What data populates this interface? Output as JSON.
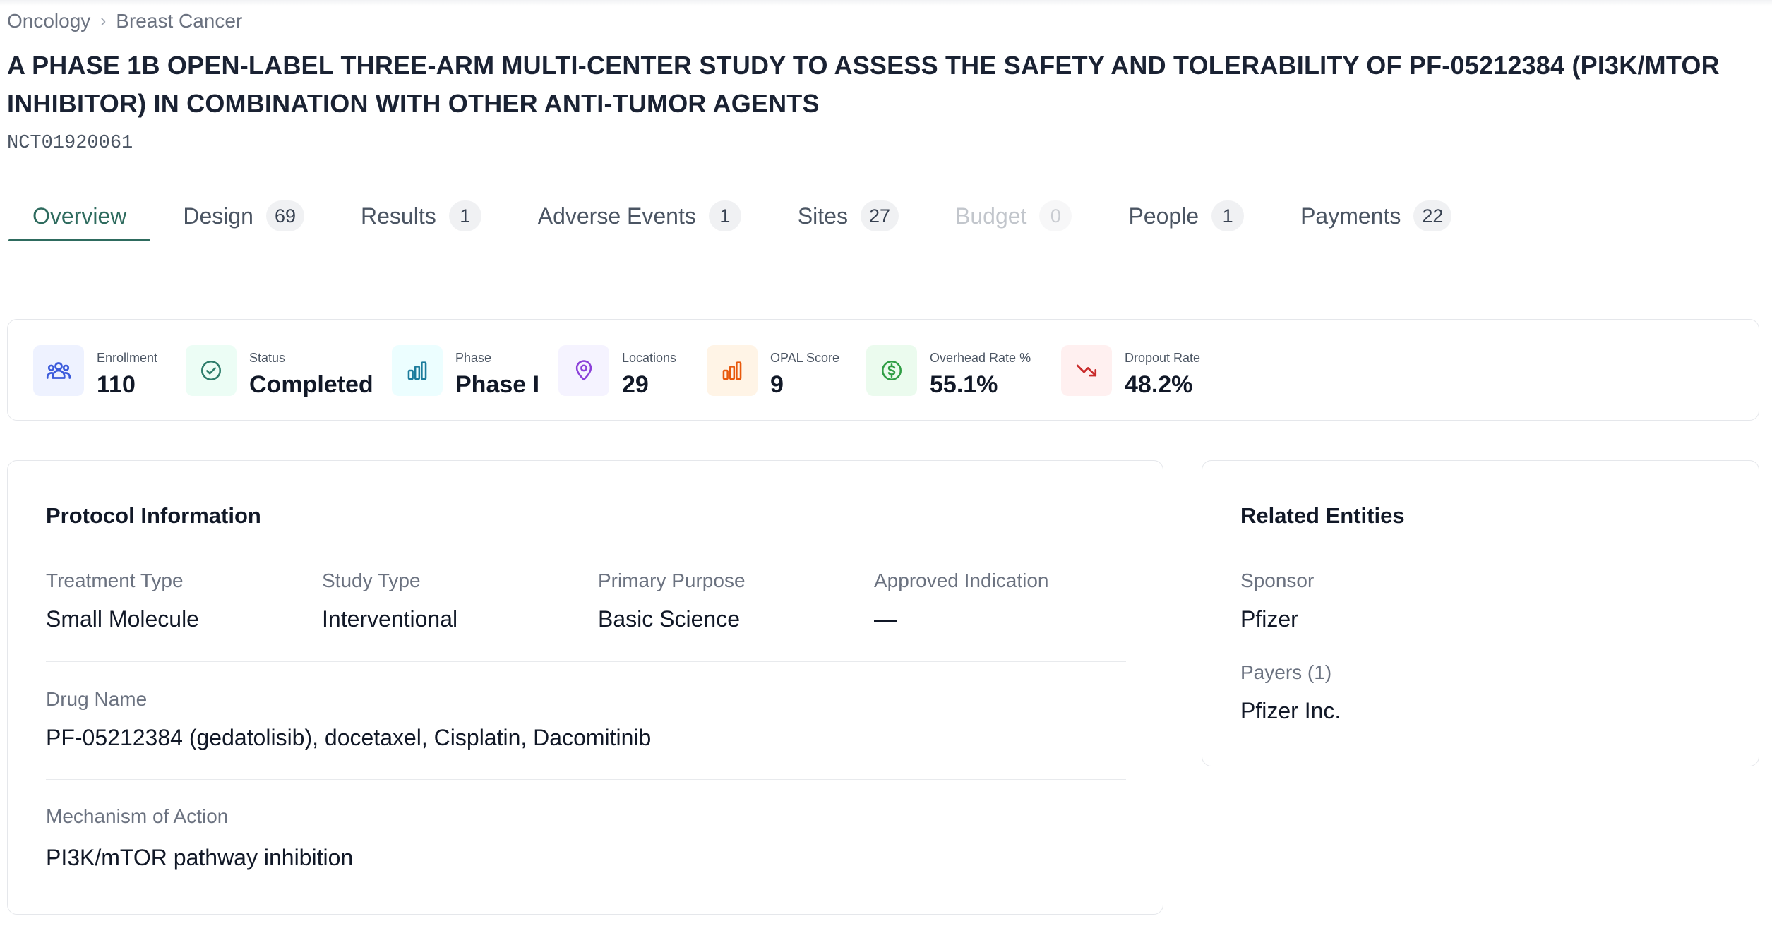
{
  "breadcrumb": {
    "items": [
      "Oncology",
      "Breast Cancer"
    ]
  },
  "study": {
    "title": "A PHASE 1B OPEN-LABEL THREE-ARM MULTI-CENTER STUDY TO ASSESS THE SAFETY AND TOLERABILITY OF PF-05212384 (PI3K/MTOR INHIBITOR) IN COMBINATION WITH OTHER ANTI-TUMOR AGENTS",
    "nct_id": "NCT01920061"
  },
  "tabs": [
    {
      "label": "Overview",
      "count": null,
      "active": true
    },
    {
      "label": "Design",
      "count": "69"
    },
    {
      "label": "Results",
      "count": "1"
    },
    {
      "label": "Adverse Events",
      "count": "1"
    },
    {
      "label": "Sites",
      "count": "27"
    },
    {
      "label": "Budget",
      "count": "0",
      "disabled": true
    },
    {
      "label": "People",
      "count": "1"
    },
    {
      "label": "Payments",
      "count": "22"
    }
  ],
  "stats": [
    {
      "label": "Enrollment",
      "value": "110",
      "icon": "users-icon",
      "color": "#3b5bdb",
      "bg": "#eef2ff"
    },
    {
      "label": "Status",
      "value": "Completed",
      "icon": "check-circle-icon",
      "color": "#2e7d6b",
      "bg": "#ecfdf5"
    },
    {
      "label": "Phase",
      "value": "Phase I",
      "icon": "bar-chart-icon",
      "color": "#1c7c9c",
      "bg": "#ecfeff"
    },
    {
      "label": "Locations",
      "value": "29",
      "icon": "map-pin-icon",
      "color": "#8b3fd9",
      "bg": "#f5f3ff"
    },
    {
      "label": "OPAL Score",
      "value": "9",
      "icon": "bar-chart-icon",
      "color": "#e8590c",
      "bg": "#fff4e6"
    },
    {
      "label": "Overhead Rate %",
      "value": "55.1%",
      "icon": "dollar-circle-icon",
      "color": "#2f9e44",
      "bg": "#ebfbee"
    },
    {
      "label": "Dropout Rate",
      "value": "48.2%",
      "icon": "trending-down-icon",
      "color": "#c92a2a",
      "bg": "#fff0f0"
    }
  ],
  "protocol": {
    "title": "Protocol Information",
    "treatment_type": {
      "label": "Treatment Type",
      "value": "Small Molecule"
    },
    "study_type": {
      "label": "Study Type",
      "value": "Interventional"
    },
    "primary_purpose": {
      "label": "Primary Purpose",
      "value": "Basic Science"
    },
    "approved_indication": {
      "label": "Approved Indication",
      "value": "—"
    },
    "drug_name": {
      "label": "Drug Name",
      "value": "PF-05212384 (gedatolisib), docetaxel, Cisplatin, Dacomitinib"
    },
    "mechanism": {
      "label": "Mechanism of Action",
      "value": "PI3K/mTOR pathway inhibition"
    }
  },
  "related": {
    "title": "Related Entities",
    "sponsor": {
      "label": "Sponsor",
      "value": "Pfizer"
    },
    "payers": {
      "label": "Payers (1)",
      "value": "Pfizer Inc."
    }
  }
}
